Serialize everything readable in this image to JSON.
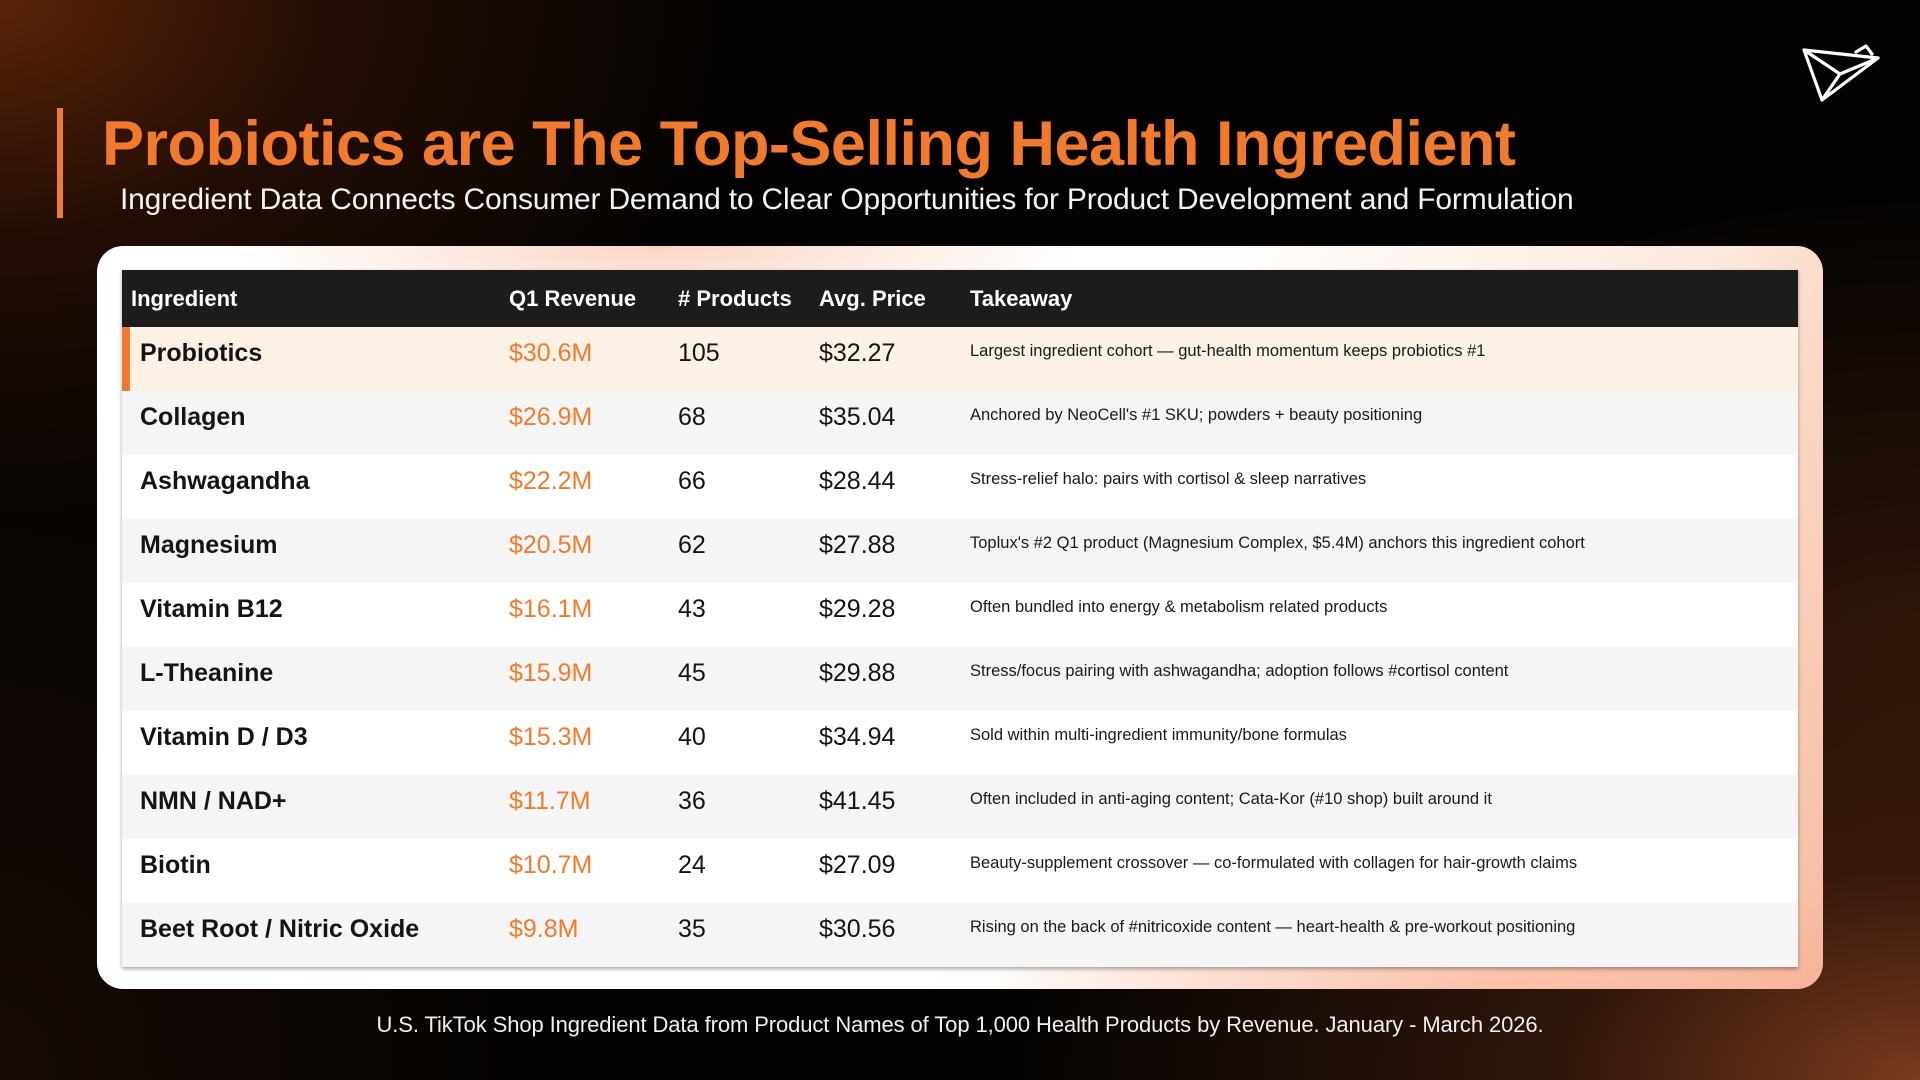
{
  "header": {
    "title": "Probiotics are The Top-Selling Health Ingredient",
    "subtitle": "Ingredient Data Connects Consumer Demand to Clear Opportunities for Product Development and Formulation"
  },
  "colors": {
    "accent": "#f07a2e",
    "header_bg": "#1c1c1c",
    "highlight_row": "#fdf1e6"
  },
  "logo_icon": "paper-plane-bird-logo",
  "table": {
    "columns": [
      "Ingredient",
      "Q1 Revenue",
      "# Products",
      "Avg. Price",
      "Takeaway"
    ],
    "rows": [
      {
        "ingredient": "Probiotics",
        "revenue": "$30.6M",
        "products": "105",
        "price": "$32.27",
        "takeaway": "Largest ingredient cohort — gut-health momentum keeps probiotics #1"
      },
      {
        "ingredient": "Collagen",
        "revenue": "$26.9M",
        "products": "68",
        "price": "$35.04",
        "takeaway": "Anchored by NeoCell's #1 SKU; powders + beauty positioning"
      },
      {
        "ingredient": "Ashwagandha",
        "revenue": "$22.2M",
        "products": "66",
        "price": "$28.44",
        "takeaway": "Stress-relief halo: pairs with cortisol & sleep narratives"
      },
      {
        "ingredient": "Magnesium",
        "revenue": "$20.5M",
        "products": "62",
        "price": "$27.88",
        "takeaway": "Toplux's #2 Q1 product (Magnesium Complex, $5.4M) anchors this ingredient cohort"
      },
      {
        "ingredient": "Vitamin B12",
        "revenue": "$16.1M",
        "products": "43",
        "price": "$29.28",
        "takeaway": "Often bundled into energy & metabolism related products"
      },
      {
        "ingredient": "L-Theanine",
        "revenue": "$15.9M",
        "products": "45",
        "price": "$29.88",
        "takeaway": "Stress/focus pairing with ashwagandha; adoption follows #cortisol content"
      },
      {
        "ingredient": "Vitamin D / D3",
        "revenue": "$15.3M",
        "products": "40",
        "price": "$34.94",
        "takeaway": "Sold within multi-ingredient immunity/bone formulas"
      },
      {
        "ingredient": "NMN / NAD+",
        "revenue": "$11.7M",
        "products": "36",
        "price": "$41.45",
        "takeaway": "Often included in anti-aging content; Cata-Kor (#10 shop) built around it"
      },
      {
        "ingredient": "Biotin",
        "revenue": "$10.7M",
        "products": "24",
        "price": "$27.09",
        "takeaway": "Beauty-supplement crossover — co-formulated with collagen for hair-growth claims"
      },
      {
        "ingredient": "Beet Root / Nitric Oxide",
        "revenue": "$9.8M",
        "products": "35",
        "price": "$30.56",
        "takeaway": "Rising on the back of #nitricoxide content — heart-health & pre-workout positioning"
      }
    ]
  },
  "footnote": "U.S. TikTok Shop Ingredient Data from Product Names of Top 1,000 Health Products by Revenue. January - March 2026."
}
